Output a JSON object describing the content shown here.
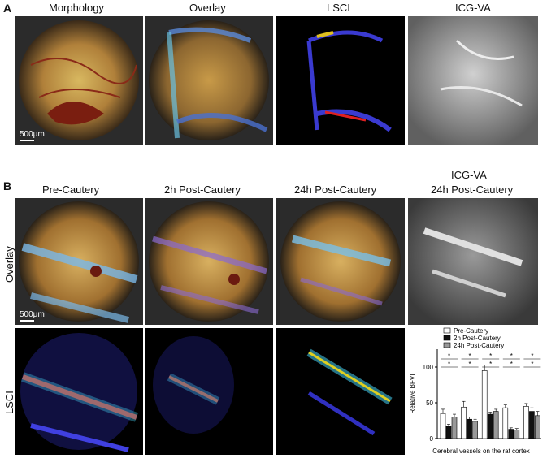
{
  "panelA": {
    "letter": "A",
    "titles": [
      "Morphology",
      "Overlay",
      "LSCI",
      "ICG-VA"
    ],
    "scale": "500μm"
  },
  "panelB": {
    "letter": "B",
    "titles": [
      "Pre-Cautery",
      "2h Post-Cautery",
      "24h Post-Cautery"
    ],
    "icg_title_line1": "ICG-VA",
    "icg_title_line2": "24h Post-Cautery",
    "row_overlay": "Overlay",
    "row_lsci": "LSCI",
    "scale": "500μm"
  },
  "chart_data": {
    "type": "bar",
    "ylabel": "Relative BFVI",
    "xlabel": "Cerebral vessels on the rat cortex",
    "ylim": [
      0,
      125
    ],
    "yticks": [
      0,
      50,
      100
    ],
    "categories": [
      "",
      "",
      "",
      "",
      ""
    ],
    "series": [
      {
        "name": "Pre-Cautery",
        "color": "#ffffff",
        "values": [
          35,
          44,
          95,
          43,
          45
        ],
        "err": [
          6,
          8,
          8,
          4,
          4
        ]
      },
      {
        "name": "2h Post-Cautery",
        "color": "#111111",
        "values": [
          17,
          27,
          34,
          13,
          38
        ],
        "err": [
          3,
          3,
          3,
          2,
          5
        ]
      },
      {
        "name": "24h Post-Cautery",
        "color": "#999999",
        "values": [
          30,
          24,
          38,
          12,
          32
        ],
        "err": [
          4,
          3,
          3,
          2,
          6
        ]
      }
    ],
    "annotations": [
      "*",
      "*",
      "*",
      "*",
      "*",
      "*",
      "*",
      "*",
      "*",
      "*"
    ]
  }
}
